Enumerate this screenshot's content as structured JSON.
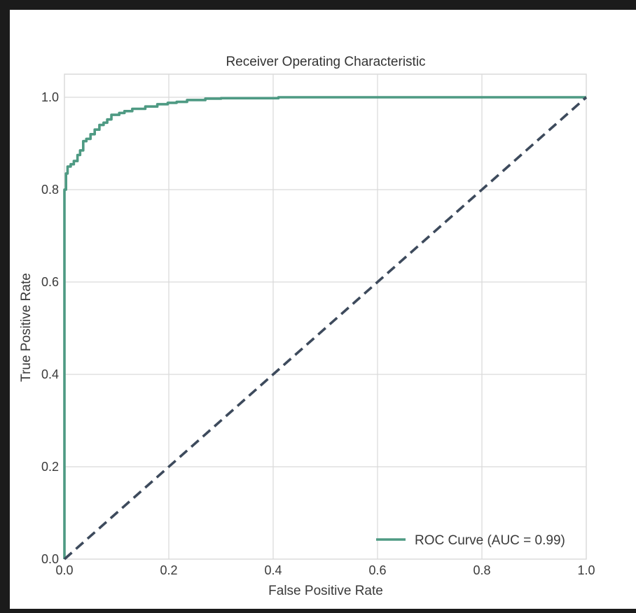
{
  "chart_data": {
    "type": "line",
    "title": "Receiver Operating Characteristic",
    "xlabel": "False Positive Rate",
    "ylabel": "True Positive Rate",
    "xlim": [
      0.0,
      1.0
    ],
    "ylim": [
      0.0,
      1.05
    ],
    "xticks": [
      "0.0",
      "0.2",
      "0.4",
      "0.6",
      "0.8",
      "1.0"
    ],
    "yticks": [
      "0.0",
      "0.2",
      "0.4",
      "0.6",
      "0.8",
      "1.0"
    ],
    "grid": true,
    "legend_position": "lower-right",
    "series": [
      {
        "name": "ROC Curve (AUC = 0.99)",
        "color": "#4e9a83",
        "style": "solid",
        "x": [
          0.0,
          0.0,
          0.003,
          0.003,
          0.006,
          0.006,
          0.012,
          0.012,
          0.018,
          0.018,
          0.025,
          0.025,
          0.03,
          0.03,
          0.036,
          0.036,
          0.042,
          0.042,
          0.05,
          0.05,
          0.058,
          0.058,
          0.067,
          0.067,
          0.075,
          0.075,
          0.082,
          0.082,
          0.09,
          0.09,
          0.105,
          0.105,
          0.115,
          0.115,
          0.13,
          0.13,
          0.155,
          0.155,
          0.178,
          0.178,
          0.198,
          0.198,
          0.215,
          0.215,
          0.235,
          0.235,
          0.27,
          0.27,
          0.3,
          0.3,
          0.41,
          0.41,
          1.0
        ],
        "y": [
          0.0,
          0.8,
          0.8,
          0.835,
          0.835,
          0.85,
          0.85,
          0.855,
          0.855,
          0.862,
          0.862,
          0.875,
          0.875,
          0.885,
          0.885,
          0.905,
          0.905,
          0.91,
          0.91,
          0.92,
          0.92,
          0.93,
          0.93,
          0.94,
          0.94,
          0.945,
          0.945,
          0.952,
          0.952,
          0.962,
          0.962,
          0.966,
          0.966,
          0.97,
          0.97,
          0.975,
          0.975,
          0.98,
          0.98,
          0.985,
          0.985,
          0.988,
          0.988,
          0.99,
          0.99,
          0.994,
          0.994,
          0.997,
          0.997,
          0.998,
          0.998,
          1.0,
          1.0
        ]
      },
      {
        "name": "",
        "color": "#3d4a5c",
        "style": "dashed",
        "x": [
          0.0,
          1.0
        ],
        "y": [
          0.0,
          1.0
        ]
      }
    ]
  }
}
